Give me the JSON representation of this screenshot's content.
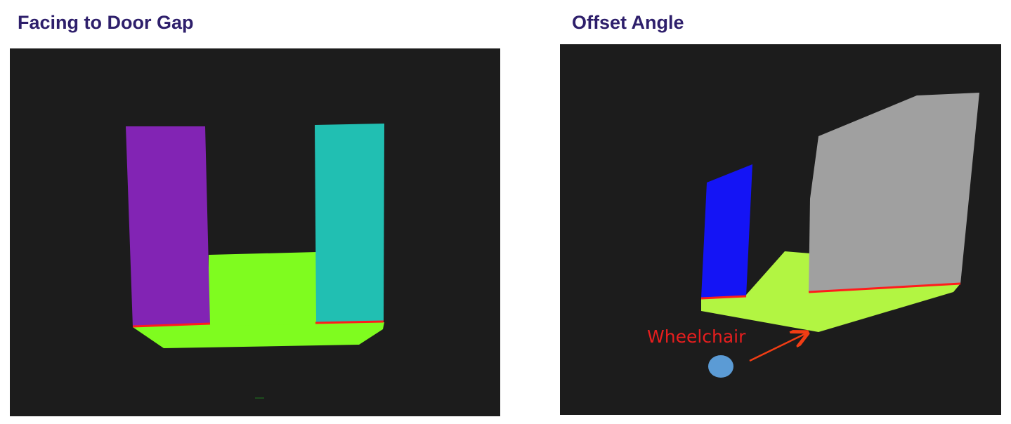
{
  "panels": {
    "left": {
      "title": "Facing to Door Gap"
    },
    "right": {
      "title": "Offset Angle",
      "annotation": "Wheelchair"
    }
  },
  "colors": {
    "title": "#2e1f6b",
    "background": "#1c1c1c",
    "floor_left": "#7ffc1f",
    "floor_right": "#b2f542",
    "wall_purple": "#8224b4",
    "wall_teal": "#21bfb2",
    "wall_blue": "#1414f5",
    "wall_gray": "#a0a0a0",
    "edge_red": "#ff1c1c",
    "annotation_red": "#e61e1e",
    "arrow_orange": "#f23d14",
    "wheelchair_blue": "#5b9bd5"
  },
  "icons": {
    "wheelchair_marker": "blue-circle",
    "pointer": "arrow"
  }
}
